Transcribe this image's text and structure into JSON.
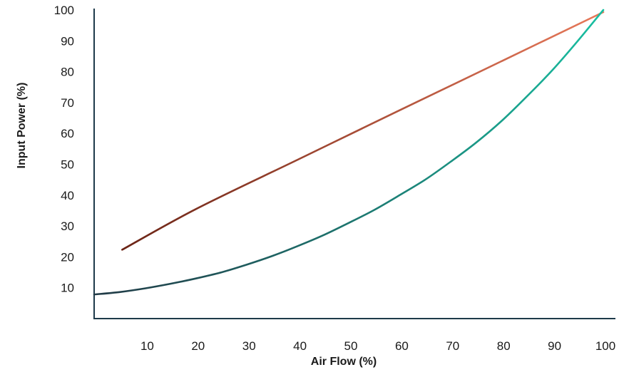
{
  "chart_data": {
    "type": "line",
    "title": "",
    "xlabel": "Air Flow (%)",
    "ylabel": "Input Power (%)",
    "xlim": [
      0,
      100
    ],
    "ylim": [
      0,
      100
    ],
    "x_ticks": [
      10,
      20,
      30,
      40,
      50,
      60,
      70,
      80,
      90,
      100
    ],
    "y_ticks": [
      10,
      20,
      30,
      40,
      50,
      60,
      70,
      80,
      90,
      100
    ],
    "grid": false,
    "series": [
      {
        "color_start": "#6b2416",
        "color_end": "#e8795a",
        "x": [
          5.5,
          20,
          40,
          60,
          80,
          100
        ],
        "y": [
          22.3,
          35.5,
          51.5,
          67.5,
          83.4,
          99.3
        ]
      },
      {
        "color_start": "#213a46",
        "color_end": "#18c0a2",
        "x": [
          0,
          5,
          10,
          15,
          20,
          25,
          30,
          35,
          40,
          45,
          50,
          55,
          60,
          65,
          70,
          75,
          80,
          85,
          90,
          95,
          100
        ],
        "y": [
          7.8,
          8.6,
          9.8,
          11.3,
          13.0,
          15.0,
          17.5,
          20.3,
          23.5,
          27.0,
          31.0,
          35.2,
          40.0,
          45.0,
          50.8,
          57.0,
          64.0,
          72.0,
          80.5,
          90.0,
          100.0
        ]
      }
    ]
  }
}
